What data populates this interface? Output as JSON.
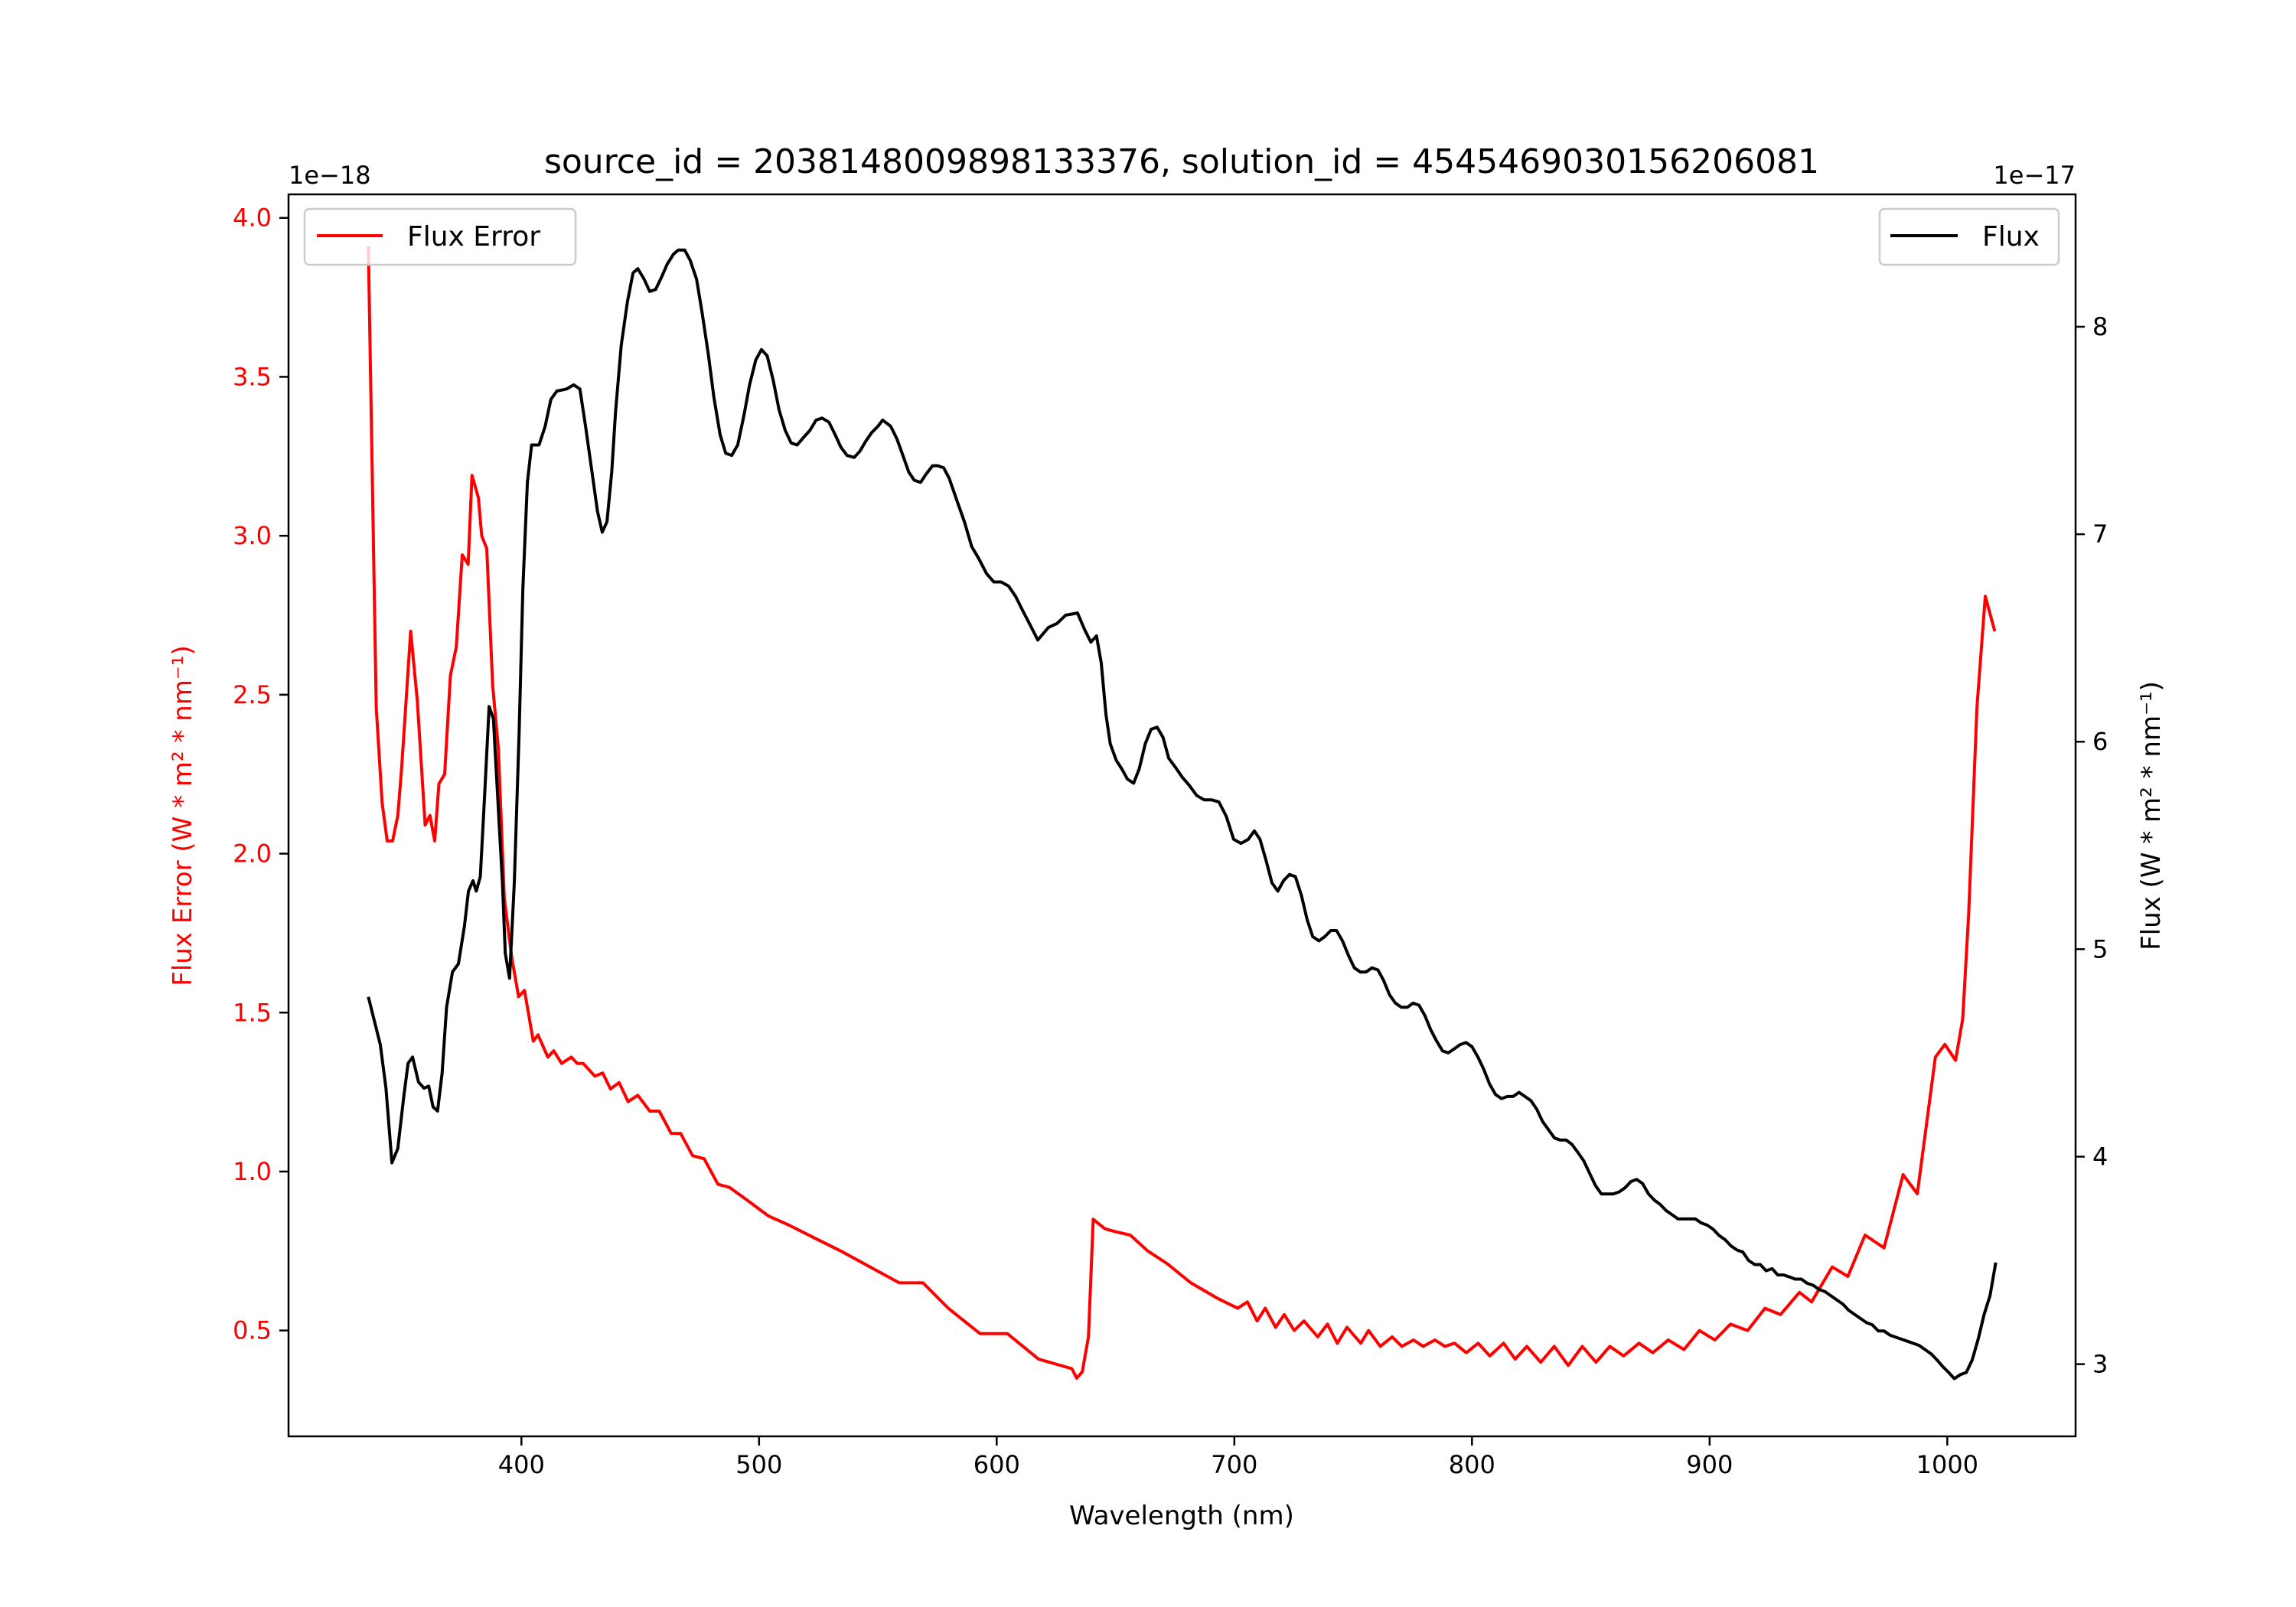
{
  "chart_data": {
    "type": "line",
    "title": "source_id = 2038148009898133376, solution_id = 4545469030156206081",
    "xlabel": "Wavelength (nm)",
    "ylabel_left": "Flux Error (W * m² * nm⁻¹)",
    "ylabel_right": "Flux (W * m² * nm⁻¹)",
    "left_offset_label": "1e−18",
    "right_offset_label": "1e−17",
    "xlim": [
      302,
      1054
    ],
    "ylim_left": [
      0.167,
      4.074
    ],
    "ylim_right": [
      2.652,
      8.638
    ],
    "x_ticks": [
      400,
      500,
      600,
      700,
      800,
      900,
      1000
    ],
    "x_tick_labels": [
      "400",
      "500",
      "600",
      "700",
      "800",
      "900",
      "1000"
    ],
    "y_left_ticks": [
      0.5,
      1.0,
      1.5,
      2.0,
      2.5,
      3.0,
      3.5,
      4.0
    ],
    "y_left_tick_labels": [
      "0.5",
      "1.0",
      "1.5",
      "2.0",
      "2.5",
      "3.0",
      "3.5",
      "4.0"
    ],
    "y_right_ticks": [
      3,
      4,
      5,
      6,
      7,
      8
    ],
    "y_right_tick_labels": [
      "3",
      "4",
      "5",
      "6",
      "7",
      "8"
    ],
    "grid": false,
    "legend": [
      {
        "label": "Flux Error",
        "placement": "top-left",
        "color": "#ff0000"
      },
      {
        "label": "Flux",
        "placement": "top-right",
        "color": "#000000"
      }
    ],
    "series": [
      {
        "name": "Flux Error",
        "axis": "left",
        "color": "#ff0000",
        "unit_scale": "1e-18",
        "x": [
          335.6,
          338.9,
          341.4,
          343.5,
          345.8,
          348,
          349.6,
          353.4,
          356.2,
          359.5,
          361.5,
          363.5,
          365.3,
          367.7,
          370.1,
          372.6,
          375.1,
          377.6,
          379.2,
          381.9,
          383.3,
          385.4,
          387.9,
          390.3,
          392.8,
          396,
          398.8,
          401.3,
          405,
          407,
          411.1,
          413.6,
          416.9,
          421,
          423.5,
          426,
          430.9,
          434.2,
          437.5,
          441.1,
          444.9,
          449,
          454,
          458,
          463,
          467,
          472,
          476.9,
          482.7,
          487.6,
          495,
          504,
          513,
          523.6,
          534.4,
          546.7,
          559,
          569,
          579.6,
          593,
          604.5,
          617.6,
          631.6,
          633.7,
          636,
          638.6,
          640.6,
          645.5,
          650.5,
          656.2,
          663.6,
          671.8,
          681.7,
          693.2,
          701.4,
          705.5,
          709.6,
          713,
          717.4,
          721,
          725.2,
          729.3,
          735.1,
          739.2,
          743.3,
          747.4,
          753.2,
          756.5,
          761.4,
          766.4,
          770.5,
          775.4,
          779.5,
          784.4,
          788.6,
          792.7,
          797.6,
          802.6,
          807.5,
          813.3,
          818.2,
          823.1,
          828.9,
          834.6,
          840.5,
          846.4,
          852.2,
          858,
          863.8,
          870.3,
          876.1,
          882.6,
          889.2,
          895.7,
          902.2,
          908.8,
          916,
          923.3,
          929.8,
          937.8,
          942.9,
          951.6,
          958.2,
          965.4,
          973.4,
          981.4,
          987.4,
          995,
          999,
          1003.5,
          1006.5,
          1009,
          1012.5,
          1016,
          1020
        ],
        "y": [
          3.91,
          2.46,
          2.16,
          2.04,
          2.04,
          2.12,
          2.27,
          2.7,
          2.48,
          2.09,
          2.12,
          2.04,
          2.22,
          2.25,
          2.56,
          2.65,
          2.94,
          2.91,
          3.19,
          3.12,
          3.0,
          2.96,
          2.53,
          2.33,
          1.86,
          1.67,
          1.55,
          1.57,
          1.41,
          1.43,
          1.36,
          1.38,
          1.34,
          1.36,
          1.34,
          1.34,
          1.3,
          1.31,
          1.26,
          1.28,
          1.22,
          1.24,
          1.19,
          1.19,
          1.12,
          1.12,
          1.05,
          1.04,
          0.96,
          0.95,
          0.91,
          0.86,
          0.83,
          0.79,
          0.75,
          0.7,
          0.65,
          0.65,
          0.57,
          0.49,
          0.49,
          0.41,
          0.38,
          0.35,
          0.37,
          0.48,
          0.85,
          0.82,
          0.81,
          0.8,
          0.75,
          0.71,
          0.65,
          0.6,
          0.57,
          0.59,
          0.53,
          0.57,
          0.51,
          0.55,
          0.5,
          0.53,
          0.48,
          0.52,
          0.46,
          0.51,
          0.46,
          0.5,
          0.45,
          0.48,
          0.45,
          0.47,
          0.45,
          0.47,
          0.45,
          0.46,
          0.43,
          0.46,
          0.42,
          0.46,
          0.41,
          0.45,
          0.4,
          0.45,
          0.39,
          0.45,
          0.4,
          0.45,
          0.42,
          0.46,
          0.43,
          0.47,
          0.44,
          0.5,
          0.47,
          0.52,
          0.5,
          0.57,
          0.55,
          0.62,
          0.59,
          0.7,
          0.67,
          0.8,
          0.76,
          0.99,
          0.93,
          1.36,
          1.4,
          1.35,
          1.48,
          1.81,
          2.46,
          2.81,
          2.7
        ]
      },
      {
        "name": "Flux",
        "axis": "right",
        "color": "#000000",
        "unit_scale": "1e-17",
        "x": [
          335.6,
          340.6,
          343,
          345.5,
          348,
          350.5,
          352.3,
          354.2,
          356.7,
          359,
          361,
          362.8,
          364.7,
          366.6,
          368.5,
          371,
          373.5,
          376,
          377.7,
          379.6,
          381,
          382.7,
          384.5,
          386.4,
          388.2,
          390,
          392,
          393.2,
          395,
          397,
          399,
          400.6,
          402.5,
          404.3,
          407.4,
          410,
          412.4,
          414.9,
          419,
          422,
          424.6,
          427,
          429.7,
          432,
          434,
          436,
          438,
          439.6,
          442,
          444.6,
          447,
          449,
          451.6,
          454,
          456.5,
          459,
          461.3,
          464,
          466,
          468.7,
          471,
          473.7,
          476,
          478.6,
          481,
          483.6,
          486,
          488.5,
          491,
          493.6,
          496,
          498.6,
          501,
          503.4,
          506,
          508.4,
          511,
          513.5,
          516,
          519,
          521.4,
          524,
          526.5,
          529.4,
          532,
          534.4,
          537,
          540,
          542.4,
          545,
          547.4,
          550,
          552,
          555.4,
          558,
          560.5,
          563,
          565.3,
          568,
          570.3,
          573,
          575.2,
          577.7,
          580,
          583.3,
          586.4,
          589.5,
          592.6,
          595.7,
          598.8,
          601.9,
          605,
          608,
          611,
          614.2,
          617.3,
          621.7,
          625.4,
          629,
          634,
          637,
          639.6,
          642,
          644,
          646,
          647.8,
          650.3,
          652.6,
          655,
          657.6,
          660,
          662.5,
          665,
          667.5,
          670,
          672.4,
          675,
          678,
          681,
          684.2,
          687.3,
          690.4,
          693.5,
          696.6,
          699.7,
          702.8,
          705.9,
          708.4,
          710.8,
          713.3,
          715.8,
          718.3,
          720.7,
          723.2,
          725.7,
          728.2,
          730.7,
          733,
          735.6,
          738,
          740.6,
          743,
          745.5,
          748,
          750.5,
          753,
          755.4,
          757.9,
          760.4,
          762.8,
          765.3,
          767.8,
          770.3,
          772.8,
          775.2,
          777.7,
          780.2,
          782.7,
          785,
          787.6,
          790,
          792.6,
          795,
          797.5,
          800,
          802.5,
          805,
          807.4,
          809.9,
          812.4,
          814.9,
          817.3,
          819.8,
          822.3,
          824.8,
          827.2,
          829.7,
          832.2,
          834.7,
          837,
          839.6,
          842,
          844.6,
          847,
          849.5,
          852,
          854.5,
          857,
          859.4,
          861.9,
          864.4,
          866.9,
          869.3,
          871.8,
          874.3,
          876.8,
          879.2,
          881.7,
          884.2,
          886.7,
          889.2,
          891.6,
          894,
          896.6,
          899,
          901.5,
          904,
          906.5,
          909,
          911.5,
          914,
          916.4,
          919,
          921.3,
          923.8,
          926.3,
          928.7,
          931.2,
          933.7,
          936,
          938.6,
          941,
          943.6,
          946,
          948.5,
          951,
          953.5,
          956,
          958.5,
          961,
          963.5,
          966,
          968.4,
          971,
          973.4,
          975.9,
          978.3,
          980.8,
          983.3,
          985.8,
          988.2,
          990.7,
          993.2,
          995.7,
          998,
          1000.6,
          1003,
          1005.6,
          1008,
          1010.5,
          1013,
          1015.5,
          1018,
          1020.4
        ],
        "y": [
          4.77,
          4.54,
          4.33,
          3.97,
          4.04,
          4.29,
          4.45,
          4.48,
          4.36,
          4.33,
          4.34,
          4.24,
          4.22,
          4.4,
          4.72,
          4.89,
          4.93,
          5.11,
          5.28,
          5.33,
          5.28,
          5.35,
          5.74,
          6.17,
          6.11,
          5.74,
          5.32,
          4.98,
          4.86,
          5.32,
          6.03,
          6.74,
          7.25,
          7.43,
          7.43,
          7.52,
          7.65,
          7.69,
          7.7,
          7.72,
          7.7,
          7.52,
          7.3,
          7.11,
          7.01,
          7.06,
          7.3,
          7.59,
          7.91,
          8.12,
          8.26,
          8.28,
          8.23,
          8.17,
          8.18,
          8.24,
          8.3,
          8.35,
          8.37,
          8.37,
          8.32,
          8.23,
          8.07,
          7.87,
          7.66,
          7.48,
          7.39,
          7.38,
          7.43,
          7.57,
          7.72,
          7.84,
          7.89,
          7.86,
          7.74,
          7.6,
          7.5,
          7.44,
          7.43,
          7.47,
          7.5,
          7.55,
          7.56,
          7.54,
          7.48,
          7.42,
          7.38,
          7.37,
          7.4,
          7.45,
          7.49,
          7.52,
          7.55,
          7.52,
          7.46,
          7.38,
          7.3,
          7.26,
          7.25,
          7.29,
          7.33,
          7.33,
          7.32,
          7.27,
          7.16,
          7.06,
          6.94,
          6.88,
          6.81,
          6.77,
          6.77,
          6.75,
          6.7,
          6.63,
          6.56,
          6.49,
          6.55,
          6.57,
          6.61,
          6.62,
          6.54,
          6.48,
          6.51,
          6.38,
          6.13,
          5.99,
          5.91,
          5.87,
          5.82,
          5.8,
          5.87,
          5.99,
          6.06,
          6.07,
          6.02,
          5.92,
          5.88,
          5.83,
          5.79,
          5.74,
          5.72,
          5.72,
          5.71,
          5.64,
          5.53,
          5.51,
          5.53,
          5.57,
          5.53,
          5.43,
          5.32,
          5.28,
          5.33,
          5.36,
          5.35,
          5.26,
          5.14,
          5.06,
          5.04,
          5.06,
          5.09,
          5.09,
          5.04,
          4.97,
          4.91,
          4.89,
          4.89,
          4.91,
          4.9,
          4.85,
          4.78,
          4.74,
          4.72,
          4.72,
          4.74,
          4.73,
          4.68,
          4.61,
          4.56,
          4.51,
          4.5,
          4.52,
          4.54,
          4.55,
          4.53,
          4.48,
          4.42,
          4.35,
          4.3,
          4.28,
          4.29,
          4.29,
          4.31,
          4.29,
          4.27,
          4.23,
          4.17,
          4.13,
          4.09,
          4.08,
          4.08,
          4.06,
          4.02,
          3.98,
          3.92,
          3.86,
          3.82,
          3.82,
          3.82,
          3.83,
          3.85,
          3.88,
          3.89,
          3.87,
          3.82,
          3.79,
          3.77,
          3.74,
          3.72,
          3.7,
          3.7,
          3.7,
          3.7,
          3.68,
          3.67,
          3.65,
          3.62,
          3.6,
          3.57,
          3.55,
          3.54,
          3.5,
          3.48,
          3.48,
          3.45,
          3.46,
          3.43,
          3.43,
          3.42,
          3.41,
          3.41,
          3.39,
          3.38,
          3.36,
          3.35,
          3.33,
          3.31,
          3.29,
          3.26,
          3.24,
          3.22,
          3.2,
          3.19,
          3.16,
          3.16,
          3.14,
          3.13,
          3.12,
          3.11,
          3.1,
          3.09,
          3.07,
          3.05,
          3.02,
          2.99,
          2.96,
          2.93,
          2.95,
          2.96,
          3.02,
          3.12,
          3.24,
          3.33,
          3.49
        ]
      }
    ]
  }
}
